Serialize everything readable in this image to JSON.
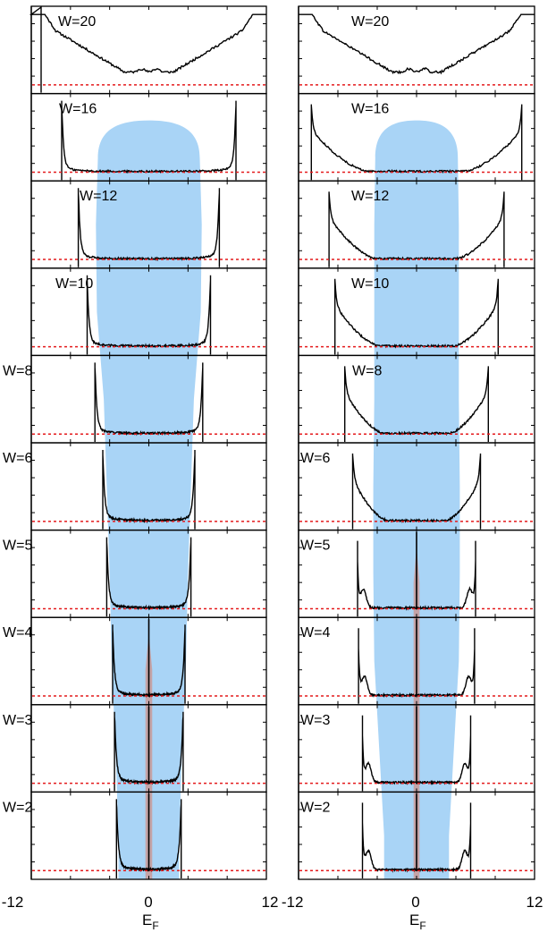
{
  "chart_data": {
    "type": "line",
    "layout": "two columns of ten stacked panels sharing one energy axis",
    "x_axis": {
      "xlim": [
        -12,
        12
      ],
      "tick_labels": [
        "-12",
        "0",
        "12"
      ],
      "tick_label_left_right": "12 -12",
      "xlabel_main": "E",
      "xlabel_sub": "F"
    },
    "panels": [
      {
        "label": "W=20",
        "w": 20
      },
      {
        "label": "W=16",
        "w": 16
      },
      {
        "label": "W=12",
        "w": 12
      },
      {
        "label": "W=10",
        "w": 10
      },
      {
        "label": "W=8",
        "w": 8
      },
      {
        "label": "W=6",
        "w": 6
      },
      {
        "label": "W=5",
        "w": 5
      },
      {
        "label": "W=4",
        "w": 4
      },
      {
        "label": "W=3",
        "w": 3
      },
      {
        "label": "W=2",
        "w": 2
      }
    ],
    "columns": [
      {
        "edges": [
          null,
          8.9,
          7.2,
          6.3,
          5.5,
          4.7,
          4.3,
          3.7,
          3.5,
          3.3
        ],
        "blue_band_halfwidth": [
          null,
          5.2,
          5.4,
          5.3,
          4.6,
          4.3,
          4.0,
          3.8,
          3.4,
          3.1
        ],
        "red_band_halfwidth": [
          0,
          0,
          0,
          0,
          0,
          0,
          0,
          0.35,
          0.35,
          0.35
        ]
      },
      {
        "edges": [
          null,
          10.7,
          8.9,
          8.3,
          7.3,
          6.5,
          6.0,
          5.9,
          5.5,
          5.5
        ],
        "blue_band_halfwidth": [
          null,
          4.2,
          4.3,
          4.3,
          4.3,
          4.4,
          4.4,
          4.3,
          3.8,
          3.3
        ],
        "red_band_halfwidth": [
          0,
          0,
          0,
          0,
          0,
          0,
          0.3,
          0.3,
          0.3,
          0.3
        ]
      }
    ],
    "series": [
      {
        "name": "",
        "color": "#000000",
        "style": "solid"
      },
      {
        "name": "",
        "color": "#e41a1c",
        "style": "dotted",
        "level": 0.1
      }
    ],
    "fill_colors": {
      "blue_band": "#a9d4f6",
      "red_band": "#c4a3a7"
    },
    "grid": false,
    "legend": "none"
  }
}
